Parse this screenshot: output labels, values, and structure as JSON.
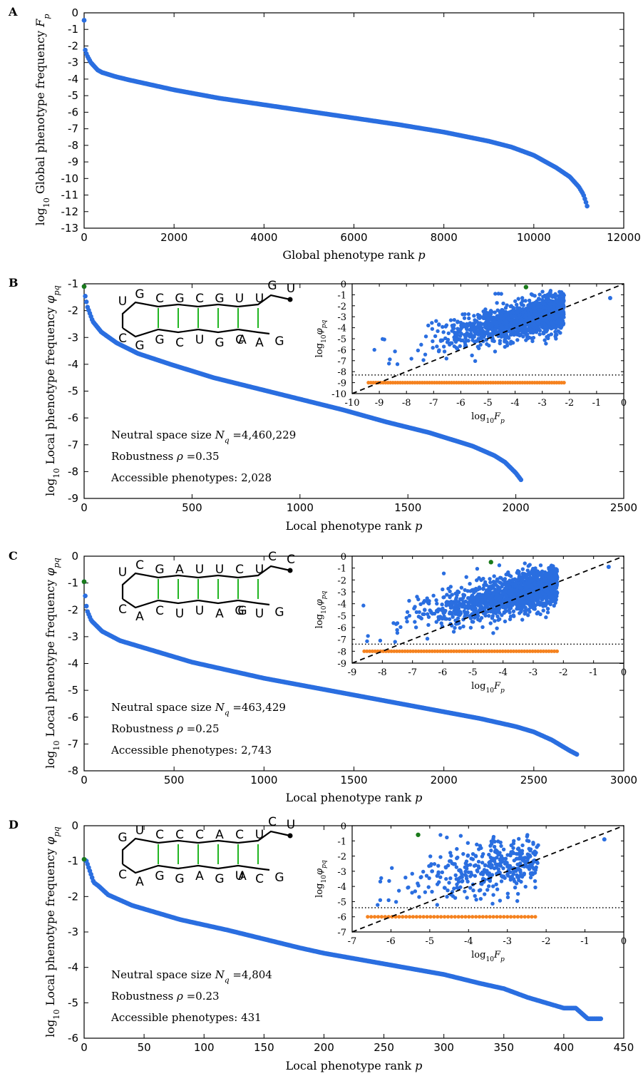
{
  "colors": {
    "points": "#2a6ee0",
    "orange": "#f5821f",
    "green": "#1a7a1a",
    "bond": "#21b521"
  },
  "chart_data": [
    {
      "panel": "A",
      "type": "scatter",
      "xlabel": "Global phenotype rank p",
      "ylabel": "log10 Global phenotype frequency F_p",
      "xlim": [
        0,
        12000
      ],
      "ylim": [
        -13,
        0
      ],
      "xticks": [
        "0",
        "2000",
        "4000",
        "6000",
        "8000",
        "10000",
        "12000"
      ],
      "yticks": [
        "0",
        "-1",
        "-2",
        "-3",
        "-4",
        "-5",
        "-6",
        "-7",
        "-8",
        "-9",
        "-10",
        "-11",
        "-12",
        "-13"
      ],
      "series": [
        {
          "x": [
            0,
            20,
            60,
            150,
            300,
            400,
            700,
            1000,
            1500,
            2000,
            3000,
            4000,
            5000,
            6000,
            7000,
            8000,
            9000,
            9500,
            10000,
            10500,
            10800,
            11000,
            11100,
            11150,
            11200,
            11210
          ],
          "y": [
            -0.45,
            -2.2,
            -2.55,
            -3.0,
            -3.45,
            -3.6,
            -3.85,
            -4.05,
            -4.35,
            -4.65,
            -5.15,
            -5.55,
            -5.95,
            -6.35,
            -6.75,
            -7.2,
            -7.75,
            -8.1,
            -8.6,
            -9.35,
            -9.9,
            -10.5,
            -10.95,
            -11.35,
            -11.8,
            -12.05
          ]
        }
      ]
    },
    {
      "panel": "B",
      "type": "scatter",
      "xlabel": "Local phenotype rank p",
      "ylabel": "log10 Local phenotype frequency φ_pq",
      "xlim": [
        0,
        2500
      ],
      "ylim": [
        -9,
        -1
      ],
      "xticks": [
        "0",
        "500",
        "1000",
        "1500",
        "2000",
        "2500"
      ],
      "yticks": [
        "-1",
        "-2",
        "-3",
        "-4",
        "-5",
        "-6",
        "-7",
        "-8",
        "-9"
      ],
      "series": [
        {
          "x": [
            0,
            5,
            15,
            40,
            80,
            150,
            250,
            400,
            600,
            800,
            1000,
            1200,
            1400,
            1600,
            1700,
            1800,
            1900,
            1950,
            2000,
            2028
          ],
          "y": [
            -1.1,
            -1.45,
            -1.85,
            -2.4,
            -2.8,
            -3.2,
            -3.6,
            -4.0,
            -4.5,
            -4.9,
            -5.3,
            -5.7,
            -6.15,
            -6.55,
            -6.8,
            -7.05,
            -7.4,
            -7.65,
            -8.05,
            -8.35
          ]
        }
      ],
      "annotations": [
        "Neutral space size N_q = 4,460,229",
        "Robustness ρ = 0.35",
        "Accessible phenotypes: 2,028"
      ],
      "structure": {
        "top": [
          "U",
          "G",
          "C",
          "G",
          "C",
          "G",
          "U",
          "U",
          "G",
          "U"
        ],
        "bottom": [
          "C",
          "G",
          "G",
          "C",
          "U",
          "G",
          "C",
          "A",
          "G",
          "A"
        ]
      },
      "inset": {
        "type": "scatter",
        "xlabel": "log10 F_p",
        "ylabel": "log10 φ_pq",
        "xlim": [
          -10,
          0
        ],
        "ylim": [
          -10,
          0
        ],
        "xticks": [
          "-10",
          "-9",
          "-8",
          "-7",
          "-6",
          "-5",
          "-4",
          "-3",
          "-2",
          "-1",
          "0"
        ],
        "yticks": [
          "0",
          "-1",
          "-2",
          "-3",
          "-4",
          "-5",
          "-6",
          "-7",
          "-8",
          "-9",
          "-10"
        ],
        "floor": -9,
        "threshold": -8.3,
        "x_range": [
          -9.8,
          -2.2
        ],
        "outlier": [
          -0.5,
          -1.3
        ],
        "self_point": [
          -3.6,
          -0.3
        ]
      }
    },
    {
      "panel": "C",
      "type": "scatter",
      "xlabel": "Local phenotype rank p",
      "ylabel": "log10 Local phenotype frequency φ_pq",
      "xlim": [
        0,
        3000
      ],
      "ylim": [
        -8,
        0
      ],
      "xticks": [
        "0",
        "500",
        "1000",
        "1500",
        "2000",
        "2500",
        "3000"
      ],
      "yticks": [
        "0",
        "-1",
        "-2",
        "-3",
        "-4",
        "-5",
        "-6",
        "-7",
        "-8"
      ],
      "series": [
        {
          "x": [
            0,
            5,
            15,
            40,
            100,
            200,
            400,
            600,
            800,
            1000,
            1200,
            1400,
            1600,
            1800,
            2000,
            2200,
            2400,
            2500,
            2600,
            2700,
            2743
          ],
          "y": [
            -0.95,
            -1.4,
            -2.0,
            -2.4,
            -2.8,
            -3.15,
            -3.55,
            -3.95,
            -4.25,
            -4.55,
            -4.8,
            -5.05,
            -5.3,
            -5.55,
            -5.8,
            -6.05,
            -6.35,
            -6.55,
            -6.85,
            -7.25,
            -7.4
          ]
        }
      ],
      "annotations": [
        "Neutral space size N_q = 463,429",
        "Robustness ρ = 0.25",
        "Accessible phenotypes: 2,743"
      ],
      "structure": {
        "top": [
          "U",
          "C",
          "G",
          "A",
          "U",
          "U",
          "C",
          "U",
          "C",
          "C"
        ],
        "bottom": [
          "C",
          "A",
          "C",
          "U",
          "U",
          "A",
          "G",
          "U",
          "G",
          "G"
        ]
      },
      "inset": {
        "type": "scatter",
        "xlabel": "log10 F_p",
        "ylabel": "log10 φ_pq",
        "xlim": [
          -9,
          0
        ],
        "ylim": [
          -9,
          0
        ],
        "xticks": [
          "-9",
          "-8",
          "-7",
          "-6",
          "-5",
          "-4",
          "-3",
          "-2",
          "-1",
          "0"
        ],
        "yticks": [
          "0",
          "-1",
          "-2",
          "-3",
          "-4",
          "-5",
          "-6",
          "-7",
          "-8",
          "-9"
        ],
        "floor": -8,
        "threshold": -7.4,
        "x_range": [
          -9.0,
          -2.2
        ],
        "outlier": [
          -0.5,
          -0.9
        ],
        "self_point": [
          -4.4,
          -0.5
        ]
      }
    },
    {
      "panel": "D",
      "type": "scatter",
      "xlabel": "Local phenotype rank p",
      "ylabel": "log10 Local phenotype frequency φ_pq",
      "xlim": [
        0,
        450
      ],
      "ylim": [
        -6,
        0
      ],
      "xticks": [
        "0",
        "50",
        "100",
        "150",
        "200",
        "250",
        "300",
        "350",
        "400",
        "450"
      ],
      "yticks": [
        "0",
        "-1",
        "-2",
        "-3",
        "-4",
        "-5",
        "-6"
      ],
      "series": [
        {
          "x": [
            0,
            2,
            5,
            8,
            12,
            20,
            40,
            60,
            80,
            100,
            120,
            150,
            180,
            200,
            250,
            300,
            330,
            350,
            370,
            380,
            390,
            400,
            410,
            420,
            431
          ],
          "y": [
            -0.95,
            -1.0,
            -1.3,
            -1.6,
            -1.7,
            -1.95,
            -2.25,
            -2.45,
            -2.65,
            -2.8,
            -2.95,
            -3.2,
            -3.45,
            -3.6,
            -3.9,
            -4.2,
            -4.45,
            -4.6,
            -4.85,
            -4.95,
            -5.05,
            -5.15,
            -5.15,
            -5.45,
            -5.45
          ]
        }
      ],
      "annotations": [
        "Neutral space size N_q = 4,804",
        "Robustness ρ = 0.23",
        "Accessible phenotypes: 431"
      ],
      "structure": {
        "top": [
          "G",
          "U",
          "C",
          "C",
          "C",
          "A",
          "C",
          "U",
          "C",
          "U"
        ],
        "bottom": [
          "C",
          "A",
          "G",
          "G",
          "A",
          "G",
          "U",
          "C",
          "G",
          "A"
        ]
      },
      "inset": {
        "type": "scatter",
        "xlabel": "log10 F_p",
        "ylabel": "log10 φ_pq",
        "xlim": [
          -7,
          0
        ],
        "ylim": [
          -7,
          0
        ],
        "xticks": [
          "-7",
          "-6",
          "-5",
          "-4",
          "-3",
          "-2",
          "-1",
          "0"
        ],
        "yticks": [
          "0",
          "-1",
          "-2",
          "-3",
          "-4",
          "-5",
          "-6",
          "-7"
        ],
        "floor": -6,
        "threshold": -5.4,
        "x_range": [
          -7.0,
          -2.2
        ],
        "outlier": [
          -0.5,
          -0.9
        ],
        "self_point": [
          -5.3,
          -0.6
        ]
      }
    }
  ]
}
